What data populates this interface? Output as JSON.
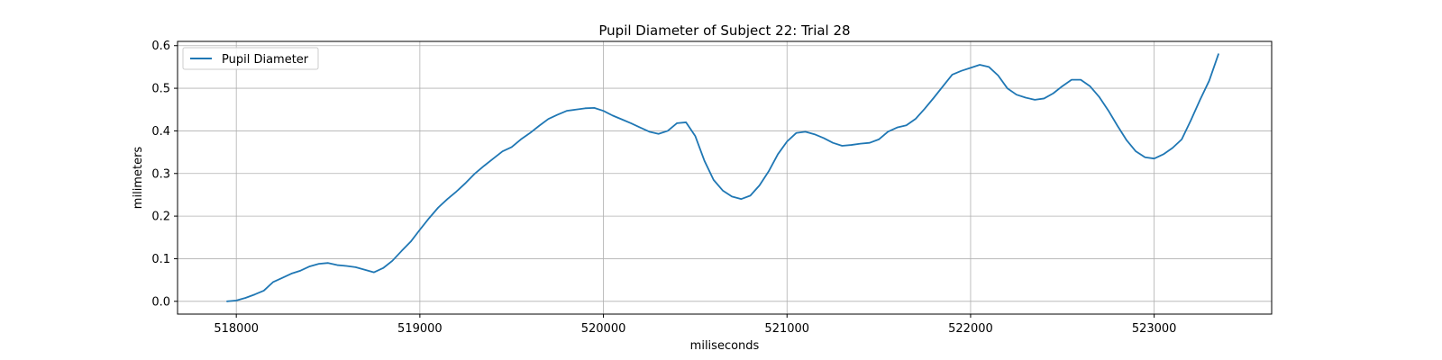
{
  "chart_data": {
    "type": "line",
    "title": "Pupil Diameter of Subject 22: Trial 28",
    "xlabel": "miliseconds",
    "ylabel": "milimeters",
    "xlim": [
      517680,
      523640
    ],
    "ylim": [
      -0.03,
      0.61
    ],
    "xticks": [
      518000,
      519000,
      520000,
      521000,
      522000,
      523000
    ],
    "yticks": [
      0.0,
      0.1,
      0.2,
      0.3,
      0.4,
      0.5,
      0.6
    ],
    "ytick_labels": [
      "0.0",
      "0.1",
      "0.2",
      "0.3",
      "0.4",
      "0.5",
      "0.6"
    ],
    "grid": true,
    "legend": {
      "position": "top-left"
    },
    "series": [
      {
        "name": "Pupil Diameter",
        "color": "#1f77b4",
        "x": [
          517950,
          518000,
          518050,
          518100,
          518150,
          518200,
          518250,
          518300,
          518350,
          518400,
          518450,
          518500,
          518550,
          518600,
          518650,
          518700,
          518750,
          518800,
          518850,
          518900,
          518950,
          519000,
          519050,
          519100,
          519150,
          519200,
          519250,
          519300,
          519350,
          519400,
          519450,
          519500,
          519550,
          519600,
          519650,
          519700,
          519750,
          519800,
          519850,
          519900,
          519950,
          520000,
          520050,
          520100,
          520150,
          520200,
          520250,
          520300,
          520350,
          520400,
          520450,
          520500,
          520550,
          520600,
          520650,
          520700,
          520750,
          520800,
          520850,
          520900,
          520950,
          521000,
          521050,
          521100,
          521150,
          521200,
          521250,
          521300,
          521350,
          521400,
          521450,
          521500,
          521550,
          521600,
          521650,
          521700,
          521750,
          521800,
          521850,
          521900,
          521950,
          522000,
          522050,
          522100,
          522150,
          522200,
          522250,
          522300,
          522350,
          522400,
          522450,
          522500,
          522550,
          522600,
          522650,
          522700,
          522750,
          522800,
          522850,
          522900,
          522950,
          523000,
          523050,
          523100,
          523150,
          523200,
          523250,
          523300,
          523350
        ],
        "y": [
          0.0,
          0.002,
          0.008,
          0.016,
          0.025,
          0.045,
          0.055,
          0.065,
          0.072,
          0.082,
          0.088,
          0.09,
          0.085,
          0.083,
          0.08,
          0.074,
          0.068,
          0.078,
          0.095,
          0.118,
          0.14,
          0.168,
          0.195,
          0.22,
          0.24,
          0.258,
          0.278,
          0.3,
          0.318,
          0.335,
          0.352,
          0.362,
          0.38,
          0.395,
          0.412,
          0.428,
          0.438,
          0.447,
          0.45,
          0.453,
          0.454,
          0.447,
          0.436,
          0.427,
          0.418,
          0.408,
          0.398,
          0.393,
          0.4,
          0.418,
          0.42,
          0.388,
          0.33,
          0.285,
          0.26,
          0.246,
          0.24,
          0.248,
          0.272,
          0.305,
          0.345,
          0.375,
          0.395,
          0.398,
          0.392,
          0.383,
          0.372,
          0.365,
          0.367,
          0.37,
          0.372,
          0.38,
          0.398,
          0.408,
          0.413,
          0.428,
          0.452,
          0.478,
          0.505,
          0.532,
          0.541,
          0.548,
          0.555,
          0.55,
          0.53,
          0.5,
          0.485,
          0.478,
          0.473,
          0.476,
          0.488,
          0.505,
          0.52,
          0.52,
          0.505,
          0.48,
          0.448,
          0.412,
          0.378,
          0.352,
          0.338,
          0.335,
          0.345,
          0.36,
          0.38,
          0.425,
          0.473,
          0.518,
          0.58
        ]
      }
    ]
  }
}
